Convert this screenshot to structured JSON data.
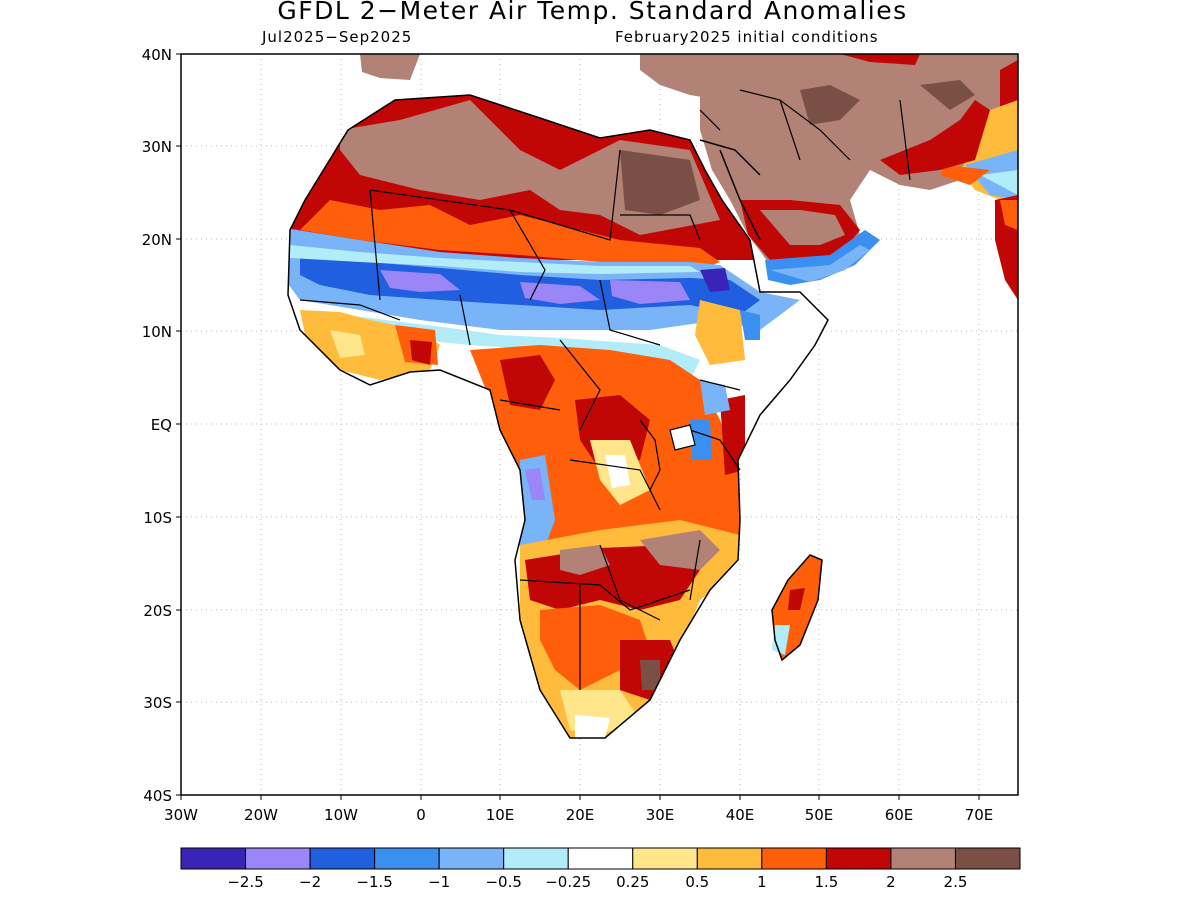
{
  "title": "GFDL 2−Meter Air Temp. Standard Anomalies",
  "subtitle_left": "Jul2025−Sep2025",
  "subtitle_right": "February2025 initial conditions",
  "lat_labels": [
    "40N",
    "30N",
    "20N",
    "10N",
    "EQ",
    "10S",
    "20S",
    "30S",
    "40S"
  ],
  "lon_labels": [
    "30W",
    "20W",
    "10W",
    "0",
    "10E",
    "20E",
    "30E",
    "40E",
    "50E",
    "60E",
    "70E"
  ],
  "legend": {
    "colors": [
      "#3a24b8",
      "#9a86f6",
      "#1f5fe0",
      "#3b8ff0",
      "#78b4f7",
      "#b2ecf8",
      "#ffffff",
      "#ffe68a",
      "#ffbb3b",
      "#ff5e0a",
      "#c10606",
      "#b38276",
      "#7a5046"
    ],
    "labels": [
      "−2.5",
      "−2",
      "−1.5",
      "−1",
      "−0.5",
      "−0.25",
      "0.25",
      "0.5",
      "1",
      "1.5",
      "2",
      "2.5"
    ]
  },
  "map_data": {
    "region": "Africa",
    "lon_range": [
      -30,
      75
    ],
    "lat_range": [
      -40,
      40
    ],
    "anomaly_zones": [
      {
        "area": "Sahara / North Africa",
        "level": "2 to 2.5+"
      },
      {
        "area": "Sahel band ~12-18N",
        "level": "-1 to -2"
      },
      {
        "area": "Gulf of Guinea coast",
        "level": "0.5 to 1.5"
      },
      {
        "area": "Central Africa",
        "level": "1 to 2"
      },
      {
        "area": "Southern Africa",
        "level": "0.5 to 2.5"
      },
      {
        "area": "Arabian Peninsula / Middle East",
        "level": "2 to 2.5+"
      },
      {
        "area": "Madagascar",
        "level": "1 to 2"
      }
    ]
  }
}
